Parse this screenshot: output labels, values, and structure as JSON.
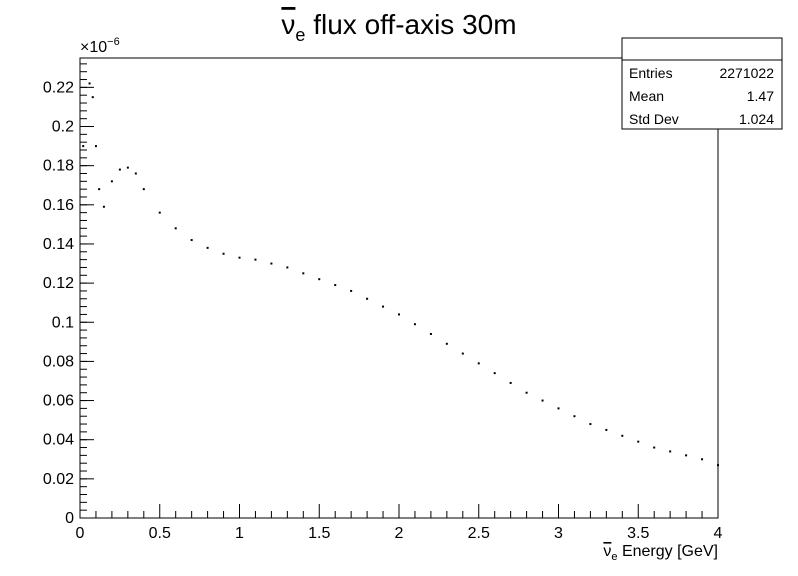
{
  "chart_data": {
    "type": "scatter",
    "title": {
      "main": "ν",
      "sub": "e",
      "rest": " flux off-axis 30m"
    },
    "xlabel": {
      "main": "ν",
      "sub": "e",
      "rest": " Energy [GeV]"
    },
    "ylabel": "",
    "y_exponent_label": {
      "base": "×10",
      "exp": "−6"
    },
    "xlim": [
      0,
      4
    ],
    "ylim": [
      0,
      0.235
    ],
    "grid": false,
    "x_ticks": [
      0,
      0.5,
      1,
      1.5,
      2,
      2.5,
      3,
      3.5,
      4
    ],
    "x_tick_labels": [
      "0",
      "0.5",
      "1",
      "1.5",
      "2",
      "2.5",
      "3",
      "3.5",
      "4"
    ],
    "y_ticks": [
      0,
      0.02,
      0.04,
      0.06,
      0.08,
      0.1,
      0.12,
      0.14,
      0.16,
      0.18,
      0.2,
      0.22
    ],
    "y_tick_labels": [
      "0",
      "0.02",
      "0.04",
      "0.06",
      "0.08",
      "0.1",
      "0.12",
      "0.14",
      "0.16",
      "0.18",
      "0.2",
      "0.22"
    ],
    "series": [
      {
        "x": [
          0.02,
          0.06,
          0.08,
          0.1,
          0.12,
          0.15,
          0.2,
          0.25,
          0.3,
          0.35,
          0.4,
          0.5,
          0.6,
          0.7,
          0.8,
          0.9,
          1.0,
          1.1,
          1.2,
          1.3,
          1.4,
          1.5,
          1.6,
          1.7,
          1.8,
          1.9,
          2.0,
          2.1,
          2.2,
          2.3,
          2.4,
          2.5,
          2.6,
          2.7,
          2.8,
          2.9,
          3.0,
          3.1,
          3.2,
          3.3,
          3.4,
          3.5,
          3.6,
          3.7,
          3.8,
          3.9,
          4.0
        ],
        "values": [
          0.19,
          0.222,
          0.215,
          0.19,
          0.168,
          0.159,
          0.172,
          0.178,
          0.179,
          0.176,
          0.168,
          0.156,
          0.148,
          0.142,
          0.138,
          0.135,
          0.133,
          0.132,
          0.13,
          0.128,
          0.125,
          0.122,
          0.119,
          0.116,
          0.112,
          0.108,
          0.104,
          0.099,
          0.094,
          0.089,
          0.084,
          0.079,
          0.074,
          0.069,
          0.064,
          0.06,
          0.056,
          0.052,
          0.048,
          0.045,
          0.042,
          0.039,
          0.036,
          0.034,
          0.032,
          0.03,
          0.027
        ]
      }
    ],
    "stats_box": {
      "entries_label": "Entries",
      "entries_value": "2271022",
      "mean_label": "Mean",
      "mean_value": "1.47",
      "stddev_label": "Std Dev",
      "stddev_value": "1.024"
    },
    "marker_color": "#000000",
    "frame_color": "#000000"
  }
}
